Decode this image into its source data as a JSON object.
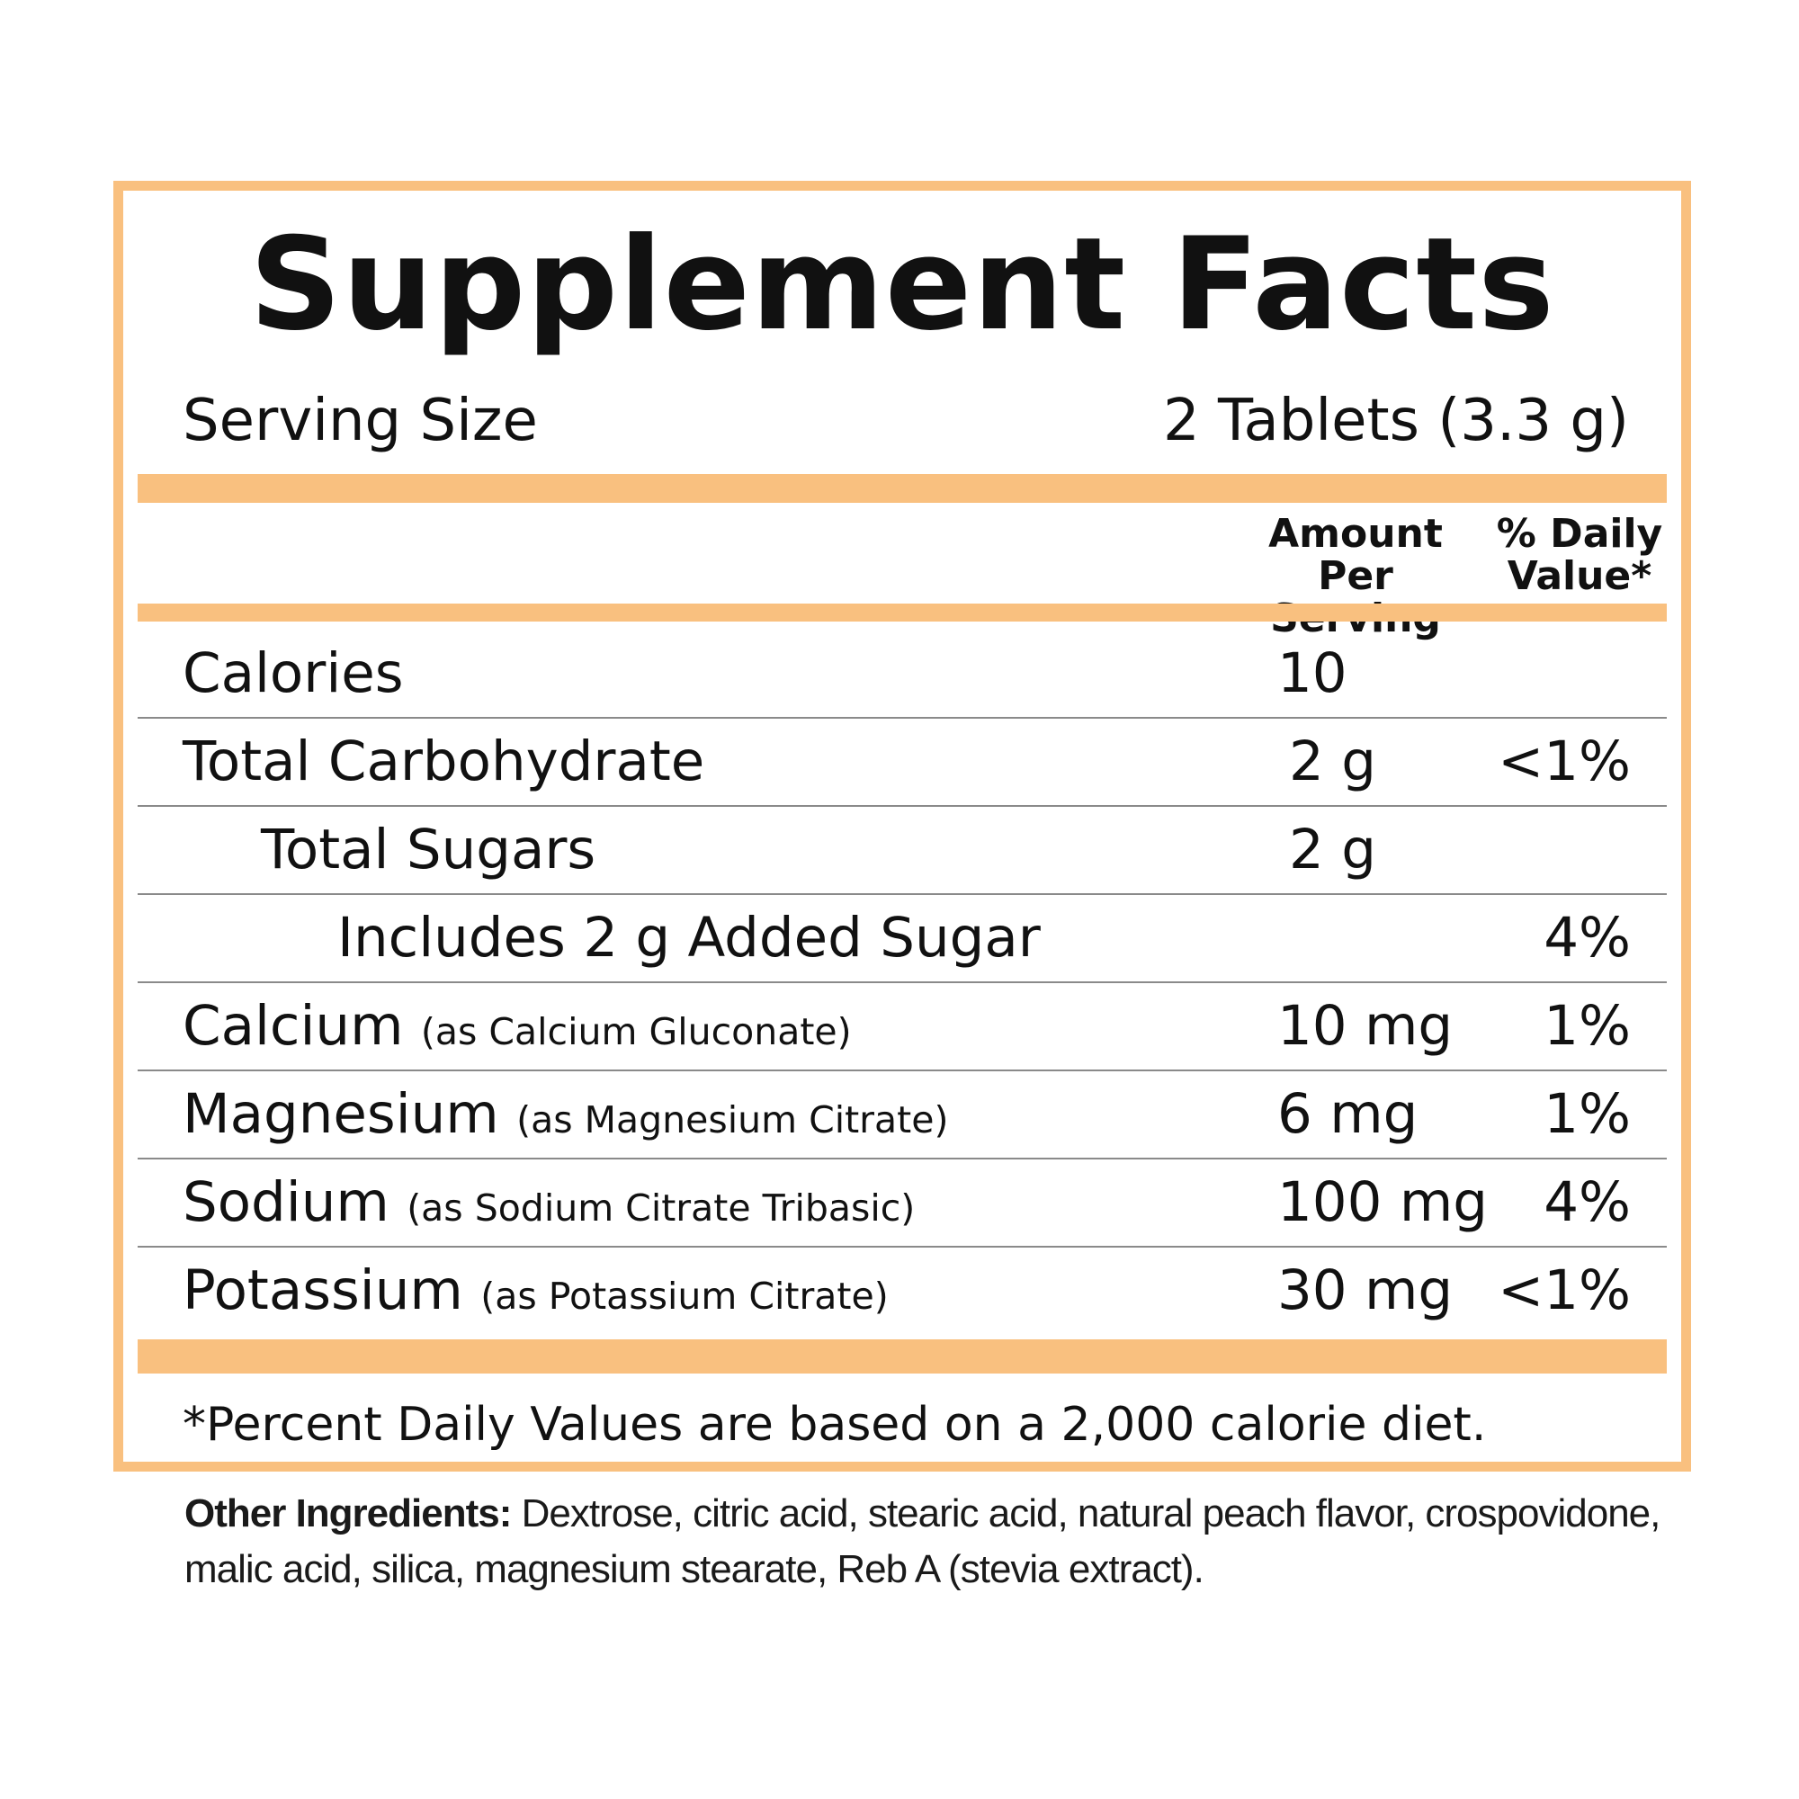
{
  "title": "Supplement Facts",
  "serving": {
    "label": "Serving Size",
    "value": "2 Tablets (3.3 g)"
  },
  "columns": {
    "amount_line1": "Amount",
    "amount_line2": "Per Serving",
    "dv_line1": "% Daily",
    "dv_line2": "Value*"
  },
  "rows": [
    {
      "name": "Calories",
      "sub": "",
      "amount": "10",
      "dv": ""
    },
    {
      "name": "Total Carbohydrate",
      "sub": "",
      "amount": "2 g",
      "dv": "<1%"
    },
    {
      "name": "Total Sugars",
      "sub": "",
      "amount": "2 g",
      "dv": ""
    },
    {
      "name": "Includes 2 g Added Sugar",
      "sub": "",
      "amount": "",
      "dv": "4%"
    },
    {
      "name": "Calcium",
      "sub": "(as Calcium Gluconate)",
      "amount": "10 mg",
      "dv": "1%"
    },
    {
      "name": "Magnesium",
      "sub": "(as Magnesium Citrate)",
      "amount": "6 mg",
      "dv": "1%"
    },
    {
      "name": "Sodium",
      "sub": "(as Sodium Citrate Tribasic)",
      "amount": "100 mg",
      "dv": "4%"
    },
    {
      "name": "Potassium",
      "sub": "(as Potassium Citrate)",
      "amount": "30 mg",
      "dv": "<1%"
    }
  ],
  "footnote": "*Percent Daily Values are based on a 2,000 calorie diet.",
  "ingredients": {
    "label": "Other Ingredients:",
    "text": "Dextrose, citric acid, stearic acid, natural peach flavor, crospovidone, malic acid, silica, magnesium stearate, Reb A (stevia extract)."
  },
  "colors": {
    "accent": "#f9c07f",
    "text": "#111111",
    "rule": "#8a8a8a"
  }
}
